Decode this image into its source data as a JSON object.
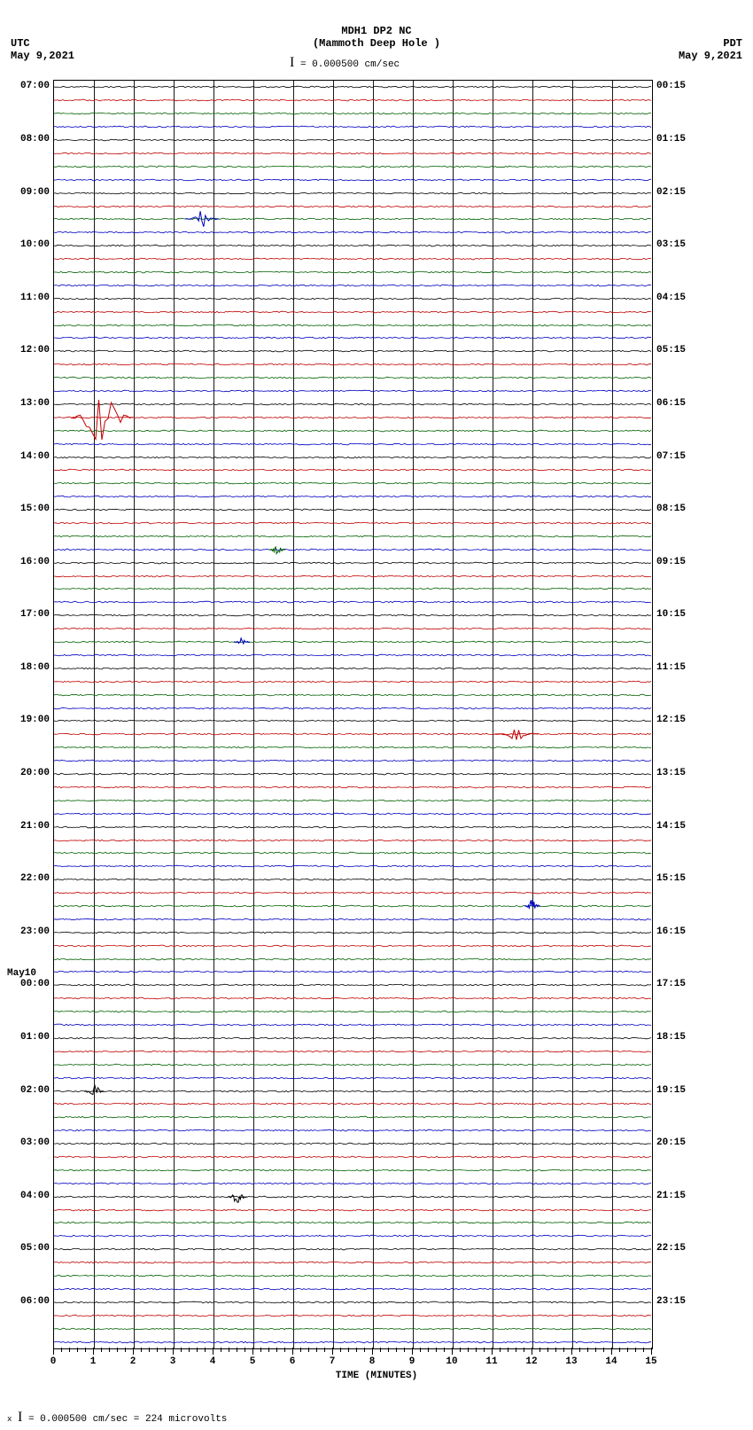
{
  "header": {
    "station": "MDH1 DP2 NC",
    "location": "(Mammoth Deep Hole )",
    "scale_text": "= 0.000500 cm/sec",
    "tz_left": "UTC",
    "date_left": "May 9,2021",
    "tz_right": "PDT",
    "date_right": "May 9,2021"
  },
  "plot": {
    "x_title": "TIME (MINUTES)",
    "x_min": 0,
    "x_max": 15,
    "x_major_step": 1,
    "n_traces": 96,
    "trace_colors": [
      "#000000",
      "#c00000",
      "#006000",
      "#0000c0"
    ],
    "left_hour_labels": [
      {
        "trace": 0,
        "text": "07:00"
      },
      {
        "trace": 4,
        "text": "08:00"
      },
      {
        "trace": 8,
        "text": "09:00"
      },
      {
        "trace": 12,
        "text": "10:00"
      },
      {
        "trace": 16,
        "text": "11:00"
      },
      {
        "trace": 20,
        "text": "12:00"
      },
      {
        "trace": 24,
        "text": "13:00"
      },
      {
        "trace": 28,
        "text": "14:00"
      },
      {
        "trace": 32,
        "text": "15:00"
      },
      {
        "trace": 36,
        "text": "16:00"
      },
      {
        "trace": 40,
        "text": "17:00"
      },
      {
        "trace": 44,
        "text": "18:00"
      },
      {
        "trace": 48,
        "text": "19:00"
      },
      {
        "trace": 52,
        "text": "20:00"
      },
      {
        "trace": 56,
        "text": "21:00"
      },
      {
        "trace": 60,
        "text": "22:00"
      },
      {
        "trace": 64,
        "text": "23:00"
      },
      {
        "trace": 72,
        "text": "01:00"
      },
      {
        "trace": 76,
        "text": "02:00"
      },
      {
        "trace": 80,
        "text": "03:00"
      },
      {
        "trace": 84,
        "text": "04:00"
      },
      {
        "trace": 88,
        "text": "05:00"
      },
      {
        "trace": 92,
        "text": "06:00"
      }
    ],
    "left_date_break": {
      "trace": 68,
      "line1": "May10",
      "line2": "00:00"
    },
    "right_hour_labels": [
      {
        "trace": 0,
        "text": "00:15"
      },
      {
        "trace": 4,
        "text": "01:15"
      },
      {
        "trace": 8,
        "text": "02:15"
      },
      {
        "trace": 12,
        "text": "03:15"
      },
      {
        "trace": 16,
        "text": "04:15"
      },
      {
        "trace": 20,
        "text": "05:15"
      },
      {
        "trace": 24,
        "text": "06:15"
      },
      {
        "trace": 28,
        "text": "07:15"
      },
      {
        "trace": 32,
        "text": "08:15"
      },
      {
        "trace": 36,
        "text": "09:15"
      },
      {
        "trace": 40,
        "text": "10:15"
      },
      {
        "trace": 44,
        "text": "11:15"
      },
      {
        "trace": 48,
        "text": "12:15"
      },
      {
        "trace": 52,
        "text": "13:15"
      },
      {
        "trace": 56,
        "text": "14:15"
      },
      {
        "trace": 60,
        "text": "15:15"
      },
      {
        "trace": 64,
        "text": "16:15"
      },
      {
        "trace": 68,
        "text": "17:15"
      },
      {
        "trace": 72,
        "text": "18:15"
      },
      {
        "trace": 76,
        "text": "19:15"
      },
      {
        "trace": 80,
        "text": "20:15"
      },
      {
        "trace": 84,
        "text": "21:15"
      },
      {
        "trace": 88,
        "text": "22:15"
      },
      {
        "trace": 92,
        "text": "23:15"
      }
    ],
    "events": [
      {
        "trace": 10,
        "minute": 3.7,
        "amplitude": 10,
        "width": 14,
        "color": "#0000c0"
      },
      {
        "trace": 25,
        "minute": 1.2,
        "amplitude": 30,
        "width": 30,
        "color": "#c00000"
      },
      {
        "trace": 35,
        "minute": 5.6,
        "amplitude": 6,
        "width": 4,
        "color": "#006000"
      },
      {
        "trace": 42,
        "minute": 4.7,
        "amplitude": 5,
        "width": 4,
        "color": "#0000c0"
      },
      {
        "trace": 49,
        "minute": 11.6,
        "amplitude": 7,
        "width": 20,
        "color": "#c00000"
      },
      {
        "trace": 62,
        "minute": 12.0,
        "amplitude": 8,
        "width": 4,
        "color": "#0000c0"
      },
      {
        "trace": 76,
        "minute": 1.0,
        "amplitude": 8,
        "width": 6,
        "color": "#000000"
      },
      {
        "trace": 84,
        "minute": 4.6,
        "amplitude": 7,
        "width": 6,
        "color": "#000000"
      }
    ]
  },
  "footer": {
    "text": "= 0.000500 cm/sec =    224 microvolts"
  }
}
